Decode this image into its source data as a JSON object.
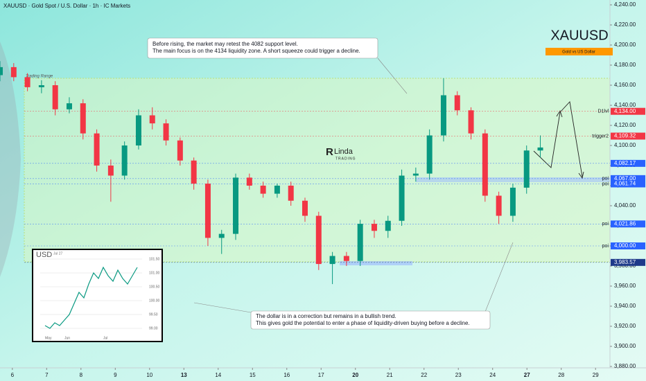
{
  "chart_data": [
    {
      "type": "candlestick",
      "title": "XAUUSD · Gold Spot / U.S. Dollar · 1h · IC Markets",
      "symbol": "XAUUSD",
      "symbol_subtitle": "Gold vs US Dollar",
      "range_label": "Trading Range",
      "logo": "Linda",
      "logo_sub": "TRADING",
      "x": [
        -0.36,
        0.04,
        0.44,
        0.85,
        1.25,
        1.66,
        2.06,
        2.46,
        2.87,
        3.27,
        3.68,
        4.08,
        4.48,
        4.89,
        5.29,
        5.7,
        6.1,
        6.51,
        6.91,
        7.31,
        7.72,
        8.12,
        8.53,
        8.93,
        9.33,
        9.74,
        10.14,
        10.55,
        10.95,
        11.35,
        11.76,
        12.16,
        12.57,
        12.97,
        13.37,
        13.78,
        14.18,
        14.59,
        14.99,
        15.39
      ],
      "open": [
        4170,
        4178,
        4168,
        4158,
        4160,
        4136,
        4142,
        4112,
        4080,
        4070,
        4100,
        4130,
        4122,
        4105,
        4085,
        4062,
        4008,
        4012,
        4068,
        4060,
        4052,
        4060,
        4045,
        4030,
        3982,
        3990,
        3985,
        4022,
        4015,
        4025,
        4070,
        4072,
        4110,
        4150,
        4135,
        4112,
        4050,
        4030,
        4058,
        4095
      ],
      "high": [
        4184,
        4182,
        4172,
        4165,
        4164,
        4148,
        4146,
        4116,
        4086,
        4104,
        4136,
        4138,
        4126,
        4108,
        4088,
        4066,
        4016,
        4072,
        4072,
        4064,
        4062,
        4064,
        4048,
        4034,
        3994,
        3994,
        4026,
        4026,
        4030,
        4076,
        4078,
        4116,
        4167,
        4154,
        4138,
        4116,
        4054,
        4062,
        4100,
        4110
      ],
      "low": [
        4164,
        4164,
        4154,
        4152,
        4130,
        4132,
        4106,
        4074,
        4044,
        4066,
        4096,
        4116,
        4100,
        4080,
        4056,
        4000,
        3992,
        4006,
        4056,
        4048,
        4048,
        4040,
        4024,
        3976,
        3962,
        3980,
        3980,
        4008,
        4008,
        4020,
        4064,
        4066,
        4104,
        4130,
        4106,
        4044,
        4022,
        4024,
        4052,
        4088
      ],
      "close": [
        4178,
        4168,
        4158,
        4160,
        4136,
        4142,
        4112,
        4080,
        4070,
        4100,
        4130,
        4122,
        4105,
        4085,
        4062,
        4008,
        4012,
        4068,
        4060,
        4052,
        4060,
        4045,
        4030,
        3982,
        3990,
        3985,
        4022,
        4015,
        4025,
        4070,
        4072,
        4110,
        4150,
        4135,
        4112,
        4050,
        4030,
        4058,
        4095,
        4098
      ],
      "up_color": "#089981",
      "down_color": "#f23645",
      "xlim": [
        -0.36,
        17.42
      ],
      "xticks": [
        {
          "value": 0,
          "label": "6"
        },
        {
          "value": 1,
          "label": "7"
        },
        {
          "value": 2,
          "label": "8"
        },
        {
          "value": 3,
          "label": "9"
        },
        {
          "value": 4,
          "label": "10"
        },
        {
          "value": 5,
          "label": "13",
          "bold": true
        },
        {
          "value": 6,
          "label": "14"
        },
        {
          "value": 7,
          "label": "15"
        },
        {
          "value": 8,
          "label": "16"
        },
        {
          "value": 9,
          "label": "17"
        },
        {
          "value": 10,
          "label": "20",
          "bold": true
        },
        {
          "value": 11,
          "label": "21"
        },
        {
          "value": 12,
          "label": "22"
        },
        {
          "value": 13,
          "label": "23"
        },
        {
          "value": 14,
          "label": "24"
        },
        {
          "value": 15,
          "label": "27",
          "bold": true
        },
        {
          "value": 16,
          "label": "28"
        },
        {
          "value": 17,
          "label": "29"
        }
      ],
      "ylim": [
        3880,
        4240
      ],
      "yticks": [
        {
          "value": 3880,
          "label": "3,880.00"
        },
        {
          "value": 3900,
          "label": "3,900.00"
        },
        {
          "value": 3920,
          "label": "3,920.00"
        },
        {
          "value": 3940,
          "label": "3,940.00"
        },
        {
          "value": 3960,
          "label": "3,960.00"
        },
        {
          "value": 3980,
          "label": "3,980.00"
        },
        {
          "value": 4000,
          "label": "4,000.00"
        },
        {
          "value": 4020,
          "label": "4,020.00"
        },
        {
          "value": 4040,
          "label": "4,040.00"
        },
        {
          "value": 4060,
          "label": "4,060.00"
        },
        {
          "value": 4080,
          "label": "4,080.00"
        },
        {
          "value": 4100,
          "label": "4,100.00"
        },
        {
          "value": 4120,
          "label": "4,120.00"
        },
        {
          "value": 4140,
          "label": "4,140.00"
        },
        {
          "value": 4160,
          "label": "4,160.00"
        },
        {
          "value": 4180,
          "label": "4,180.00"
        },
        {
          "value": 4200,
          "label": "4,200.00"
        },
        {
          "value": 4220,
          "label": "4,220.00"
        },
        {
          "value": 4240,
          "label": "4,240.00"
        }
      ],
      "levels": [
        {
          "value": 4134,
          "label": "4,134.00",
          "tag": "D1lvl",
          "color": "#f23645"
        },
        {
          "value": 4109.32,
          "label": "4,109.32",
          "tag": "trigger2",
          "color": "#f23645"
        },
        {
          "value": 4082.17,
          "label": "4,082.17",
          "color": "#2962ff"
        },
        {
          "value": 4067,
          "label": "4,067.00",
          "tag": "poi",
          "color": "#2962ff"
        },
        {
          "value": 4061.74,
          "label": "4,061.74",
          "tag": "poi",
          "color": "#2962ff"
        },
        {
          "value": 4021.86,
          "label": "4,021.86",
          "tag": "poi",
          "color": "#2962ff"
        },
        {
          "value": 4000,
          "label": "4,000.00",
          "tag": "poi",
          "color": "#2962ff"
        },
        {
          "value": 3983.57,
          "label": "3,983.57",
          "color": "#1e3a8a"
        }
      ],
      "annotations": [
        [
          "Before rising, the market may retest the 4082 support level.",
          "The main focus is on the 4134 liquidity zone. A short squeeze could trigger a decline."
        ],
        [
          "The dollar is in a correction but remains in a bullish trend.",
          "This gives gold the potential to enter a phase of liquidity-driven buying before a decline."
        ]
      ]
    },
    {
      "type": "line",
      "title": "USD",
      "subtitle": "Jul 27",
      "color": "#089981",
      "x": [
        0,
        1,
        2,
        3,
        4,
        5,
        6,
        7,
        8,
        9,
        10,
        11,
        12,
        13,
        14,
        15,
        16,
        17,
        18,
        19
      ],
      "values": [
        99.1,
        99.0,
        99.2,
        99.1,
        99.3,
        99.5,
        99.9,
        100.3,
        100.1,
        100.6,
        101.0,
        100.8,
        101.2,
        100.9,
        100.7,
        101.1,
        100.8,
        100.6,
        100.9,
        101.2
      ],
      "xlim": [
        -1,
        20
      ],
      "xticks": [
        {
          "value": 0,
          "label": "May"
        },
        {
          "value": 4,
          "label": "Jun"
        },
        {
          "value": 12,
          "label": "Jul"
        }
      ],
      "ylim": [
        98.6,
        101.8
      ],
      "yticks": [
        {
          "value": 99,
          "label": "99.00"
        },
        {
          "value": 99.5,
          "label": "99.50"
        },
        {
          "value": 100,
          "label": "100.00"
        },
        {
          "value": 100.5,
          "label": "100.50"
        },
        {
          "value": 101,
          "label": "101.00"
        },
        {
          "value": 101.5,
          "label": "101.50"
        }
      ]
    }
  ]
}
